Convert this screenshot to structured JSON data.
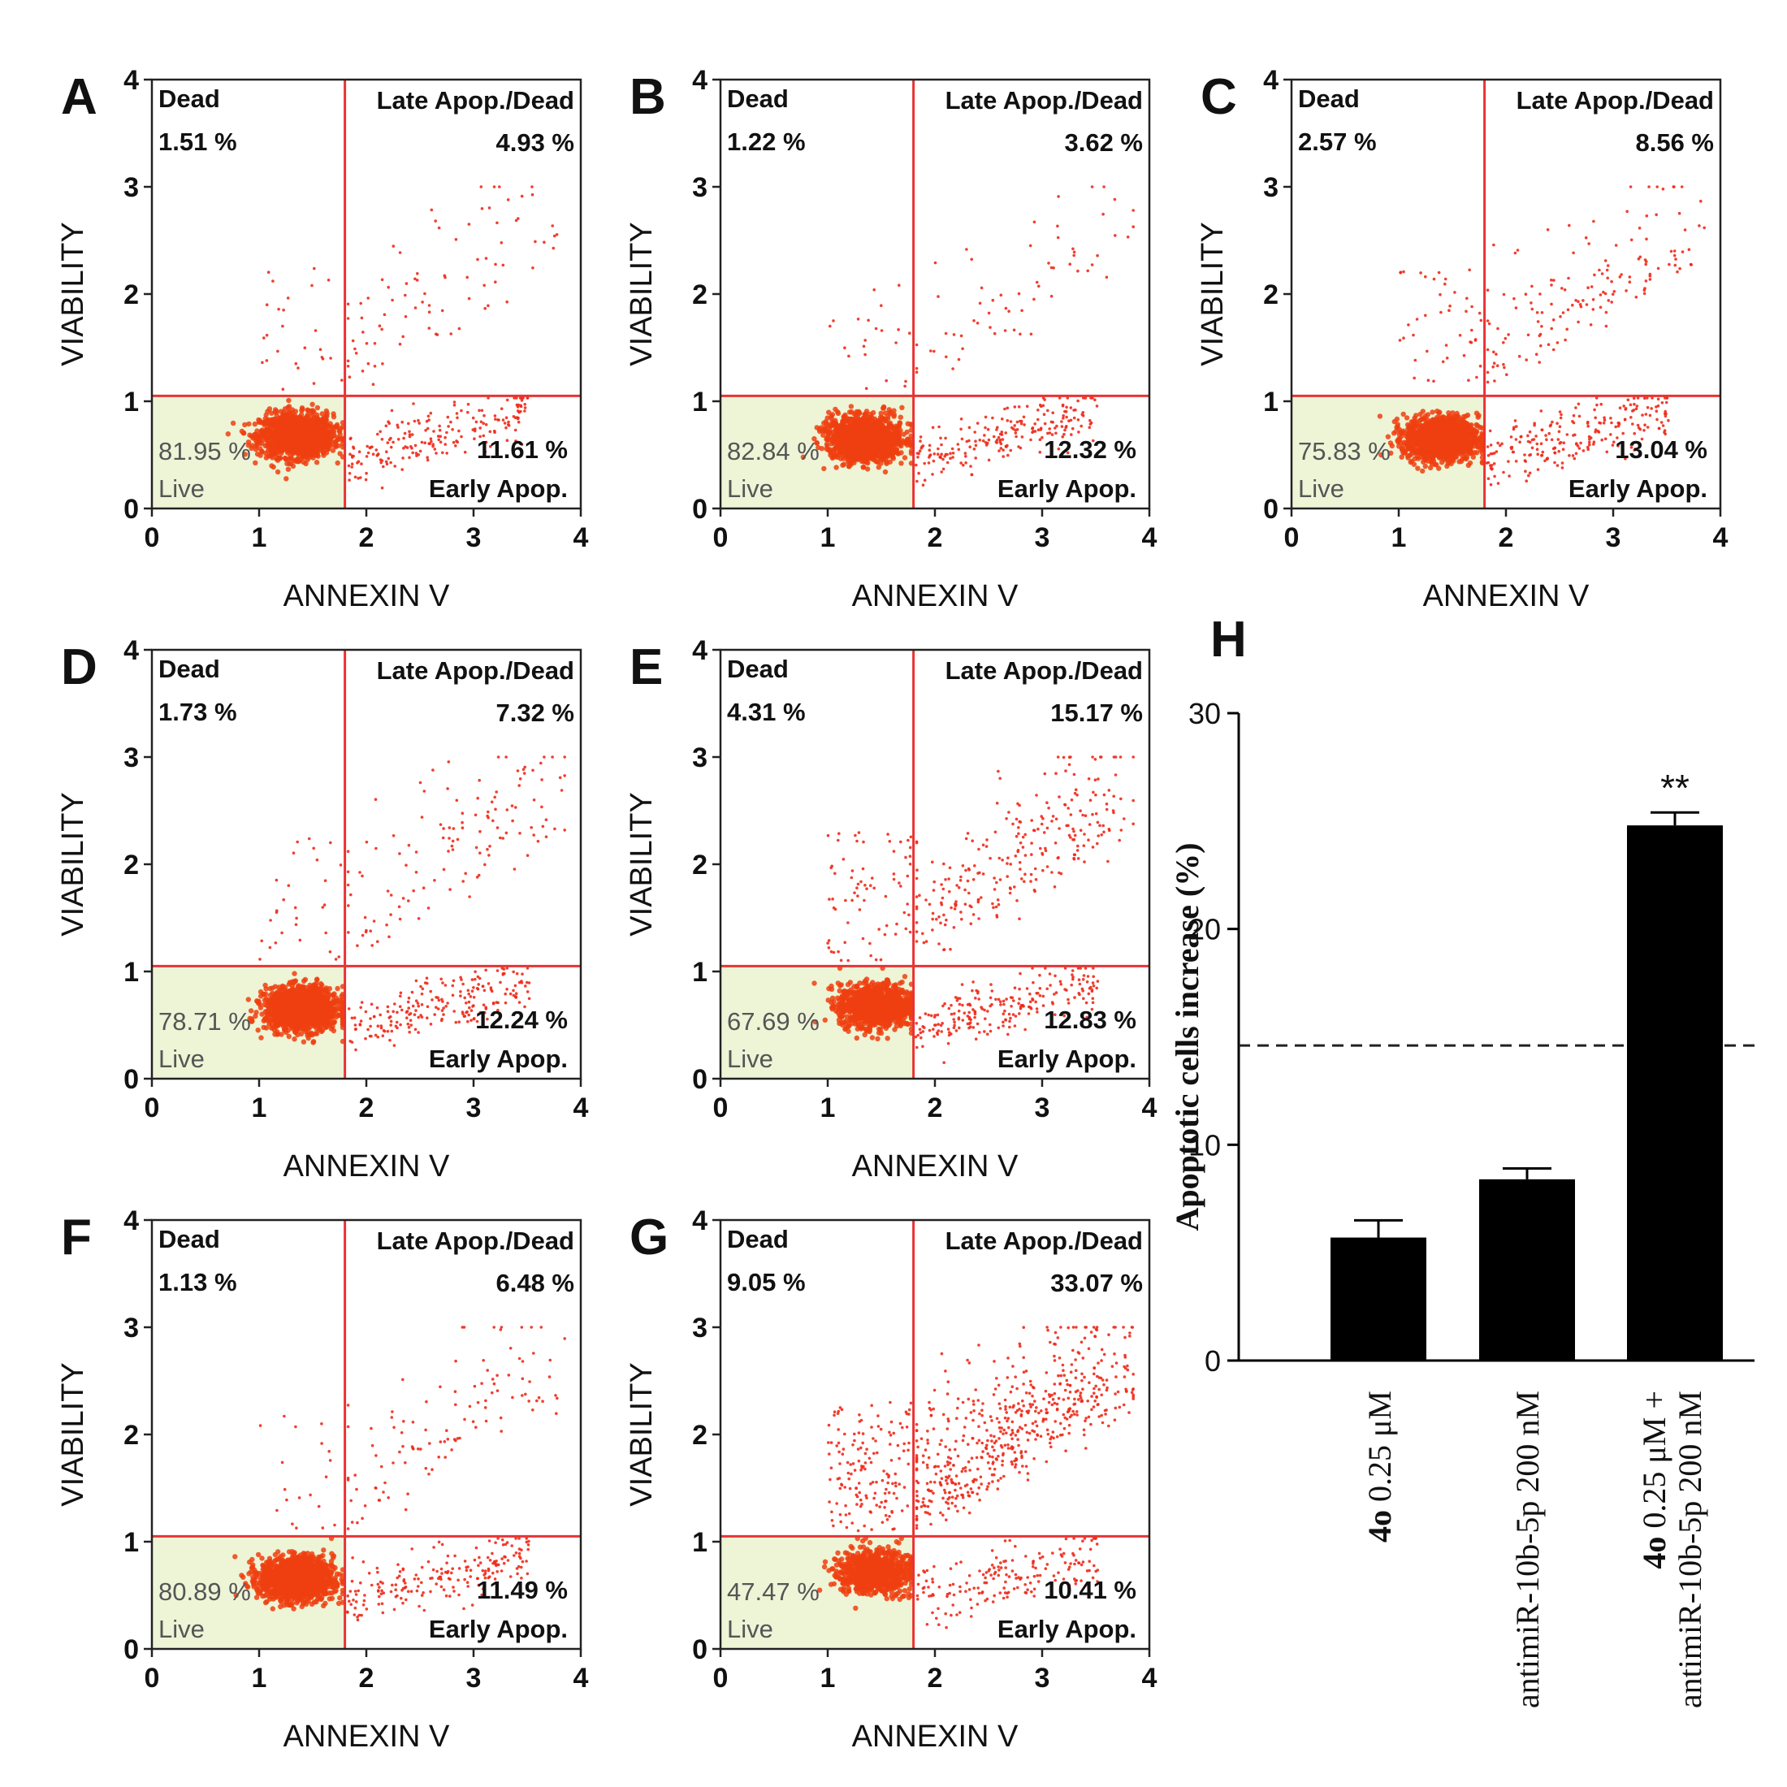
{
  "chart_data": [
    {
      "panel": "A",
      "type": "scatter",
      "xlabel": "ANNEXIN V",
      "ylabel": "VIABILITY",
      "xlim": [
        0,
        4
      ],
      "ylim": [
        0,
        4
      ],
      "xticks": [
        "0",
        "1",
        "2",
        "3",
        "4"
      ],
      "yticks": [
        "0",
        "1",
        "2",
        "3",
        "4"
      ],
      "gates": {
        "x": 1.8,
        "y": 1.05
      },
      "quadrants": {
        "dead": {
          "label": "Dead",
          "value": "1.51 %"
        },
        "late": {
          "label": "Late Apop./Dead",
          "value": "4.93 %"
        },
        "live": {
          "label": "Live",
          "value": "81.95 %"
        },
        "early": {
          "label": "Early Apop.",
          "value": "11.61 %"
        }
      },
      "core": {
        "cx": 1.35,
        "cy": 0.68
      }
    },
    {
      "panel": "B",
      "type": "scatter",
      "xlabel": "ANNEXIN V",
      "ylabel": "VIABILITY",
      "xlim": [
        0,
        4
      ],
      "ylim": [
        0,
        4
      ],
      "xticks": [
        "0",
        "1",
        "2",
        "3",
        "4"
      ],
      "yticks": [
        "0",
        "1",
        "2",
        "3",
        "4"
      ],
      "gates": {
        "x": 1.8,
        "y": 1.05
      },
      "quadrants": {
        "dead": {
          "label": "Dead",
          "value": "1.22 %"
        },
        "late": {
          "label": "Late Apop./Dead",
          "value": "3.62 %"
        },
        "live": {
          "label": "Live",
          "value": "82.84 %"
        },
        "early": {
          "label": "Early Apop.",
          "value": "12.32 %"
        }
      },
      "core": {
        "cx": 1.35,
        "cy": 0.65
      }
    },
    {
      "panel": "C",
      "type": "scatter",
      "xlabel": "ANNEXIN V",
      "ylabel": "VIABILITY",
      "xlim": [
        0,
        4
      ],
      "ylim": [
        0,
        4
      ],
      "xticks": [
        "0",
        "1",
        "2",
        "3",
        "4"
      ],
      "yticks": [
        "0",
        "1",
        "2",
        "3",
        "4"
      ],
      "gates": {
        "x": 1.8,
        "y": 1.05
      },
      "quadrants": {
        "dead": {
          "label": "Dead",
          "value": "2.57 %"
        },
        "late": {
          "label": "Late Apop./Dead",
          "value": "8.56 %"
        },
        "live": {
          "label": "Live",
          "value": "75.83 %"
        },
        "early": {
          "label": "Early Apop.",
          "value": "13.04 %"
        }
      },
      "core": {
        "cx": 1.4,
        "cy": 0.65
      }
    },
    {
      "panel": "D",
      "type": "scatter",
      "xlabel": "ANNEXIN V",
      "ylabel": "VIABILITY",
      "xlim": [
        0,
        4
      ],
      "ylim": [
        0,
        4
      ],
      "xticks": [
        "0",
        "1",
        "2",
        "3",
        "4"
      ],
      "yticks": [
        "0",
        "1",
        "2",
        "3",
        "4"
      ],
      "gates": {
        "x": 1.8,
        "y": 1.05
      },
      "quadrants": {
        "dead": {
          "label": "Dead",
          "value": "1.73 %"
        },
        "late": {
          "label": "Late Apop./Dead",
          "value": "7.32 %"
        },
        "live": {
          "label": "Live",
          "value": "78.71 %"
        },
        "early": {
          "label": "Early Apop.",
          "value": "12.24 %"
        }
      },
      "core": {
        "cx": 1.4,
        "cy": 0.65
      }
    },
    {
      "panel": "E",
      "type": "scatter",
      "xlabel": "ANNEXIN V",
      "ylabel": "VIABILITY",
      "xlim": [
        0,
        4
      ],
      "ylim": [
        0,
        4
      ],
      "xticks": [
        "0",
        "1",
        "2",
        "3",
        "4"
      ],
      "yticks": [
        "0",
        "1",
        "2",
        "3",
        "4"
      ],
      "gates": {
        "x": 1.8,
        "y": 1.05
      },
      "quadrants": {
        "dead": {
          "label": "Dead",
          "value": "4.31 %"
        },
        "late": {
          "label": "Late Apop./Dead",
          "value": "15.17 %"
        },
        "live": {
          "label": "Live",
          "value": "67.69 %"
        },
        "early": {
          "label": "Early Apop.",
          "value": "12.83 %"
        }
      },
      "core": {
        "cx": 1.45,
        "cy": 0.68
      }
    },
    {
      "panel": "F",
      "type": "scatter",
      "xlabel": "ANNEXIN V",
      "ylabel": "VIABILITY",
      "xlim": [
        0,
        4
      ],
      "ylim": [
        0,
        4
      ],
      "xticks": [
        "0",
        "1",
        "2",
        "3",
        "4"
      ],
      "yticks": [
        "0",
        "1",
        "2",
        "3",
        "4"
      ],
      "gates": {
        "x": 1.8,
        "y": 1.05
      },
      "quadrants": {
        "dead": {
          "label": "Dead",
          "value": "1.13 %"
        },
        "late": {
          "label": "Late Apop./Dead",
          "value": "6.48 %"
        },
        "live": {
          "label": "Live",
          "value": "80.89 %"
        },
        "early": {
          "label": "Early Apop.",
          "value": "11.49 %"
        }
      },
      "core": {
        "cx": 1.35,
        "cy": 0.65
      }
    },
    {
      "panel": "G",
      "type": "scatter",
      "xlabel": "ANNEXIN V",
      "ylabel": "VIABILITY",
      "xlim": [
        0,
        4
      ],
      "ylim": [
        0,
        4
      ],
      "xticks": [
        "0",
        "1",
        "2",
        "3",
        "4"
      ],
      "yticks": [
        "0",
        "1",
        "2",
        "3",
        "4"
      ],
      "gates": {
        "x": 1.8,
        "y": 1.05
      },
      "quadrants": {
        "dead": {
          "label": "Dead",
          "value": "9.05 %"
        },
        "late": {
          "label": "Late Apop./Dead",
          "value": "33.07 %"
        },
        "live": {
          "label": "Live",
          "value": "47.47 %"
        },
        "early": {
          "label": "Early Apop.",
          "value": "10.41 %"
        }
      },
      "core": {
        "cx": 1.45,
        "cy": 0.72
      }
    },
    {
      "panel": "H",
      "type": "bar",
      "ylabel": "Apoptotic cells increase (%)",
      "ylim": [
        0,
        30
      ],
      "yticks": [
        "0",
        "10",
        "20",
        "30"
      ],
      "categories": [
        {
          "bold": "4o",
          "rest": " 0.25 μM"
        },
        {
          "line1": "antimiR-10b-5p 200 nM"
        },
        {
          "bold": "4o",
          "rest": " 0.25 μM +",
          "line2": "antimiR-10b-5p 200 nM"
        }
      ],
      "values": [
        5.7,
        8.4,
        24.8
      ],
      "errors": [
        0.8,
        0.5,
        0.6
      ],
      "reference_line": 14.6,
      "annotations": [
        "",
        "",
        "**"
      ]
    }
  ],
  "style": {
    "dot_color": "#ee2a1a",
    "core_color": "#ee4010",
    "gate_color": "#ea3333",
    "live_fill": "#eef4d6",
    "bar_color": "#000000"
  }
}
